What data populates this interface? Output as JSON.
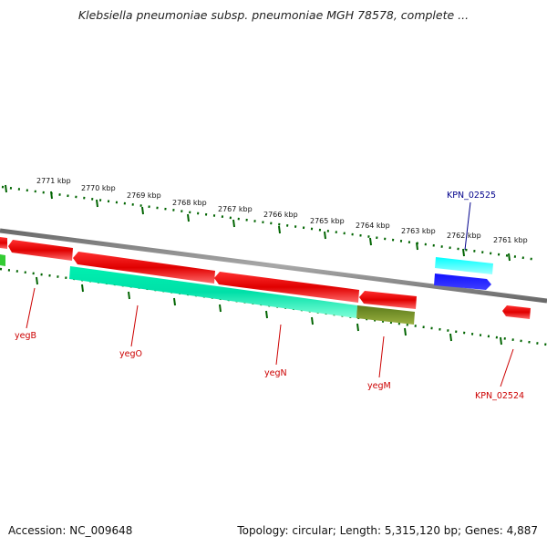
{
  "title": "Klebsiella pneumoniae subsp. pneumoniae MGH 78578, complete ...",
  "footer": {
    "accession": "Accession: NC_009648",
    "stats": "Topology: circular; Length: 5,315,120 bp; Genes: 4,887"
  },
  "ruler": {
    "labels": [
      "2771 kbp",
      "2770 kbp",
      "2769 kbp",
      "2768 kbp",
      "2767 kbp",
      "2766 kbp",
      "2765 kbp",
      "2764 kbp",
      "2763 kbp",
      "2762 kbp",
      "2761 kbp"
    ]
  },
  "genes": [
    {
      "name": "KPN_02525",
      "color": "#00008b"
    },
    {
      "name": "yegB",
      "color": "#cc0000"
    },
    {
      "name": "yegO",
      "color": "#cc0000"
    },
    {
      "name": "yegN",
      "color": "#cc0000"
    },
    {
      "name": "yegM",
      "color": "#cc0000"
    },
    {
      "name": "KPN_02524",
      "color": "#cc0000"
    }
  ],
  "colors": {
    "backbone": "#7f7f7f",
    "cds": "#ff0000",
    "rna": "#00ffcc",
    "cyan": "#00ffff",
    "blue": "#0000ee",
    "olive": "#6b8e23",
    "green": "#33cc33",
    "tick": "#006400"
  }
}
